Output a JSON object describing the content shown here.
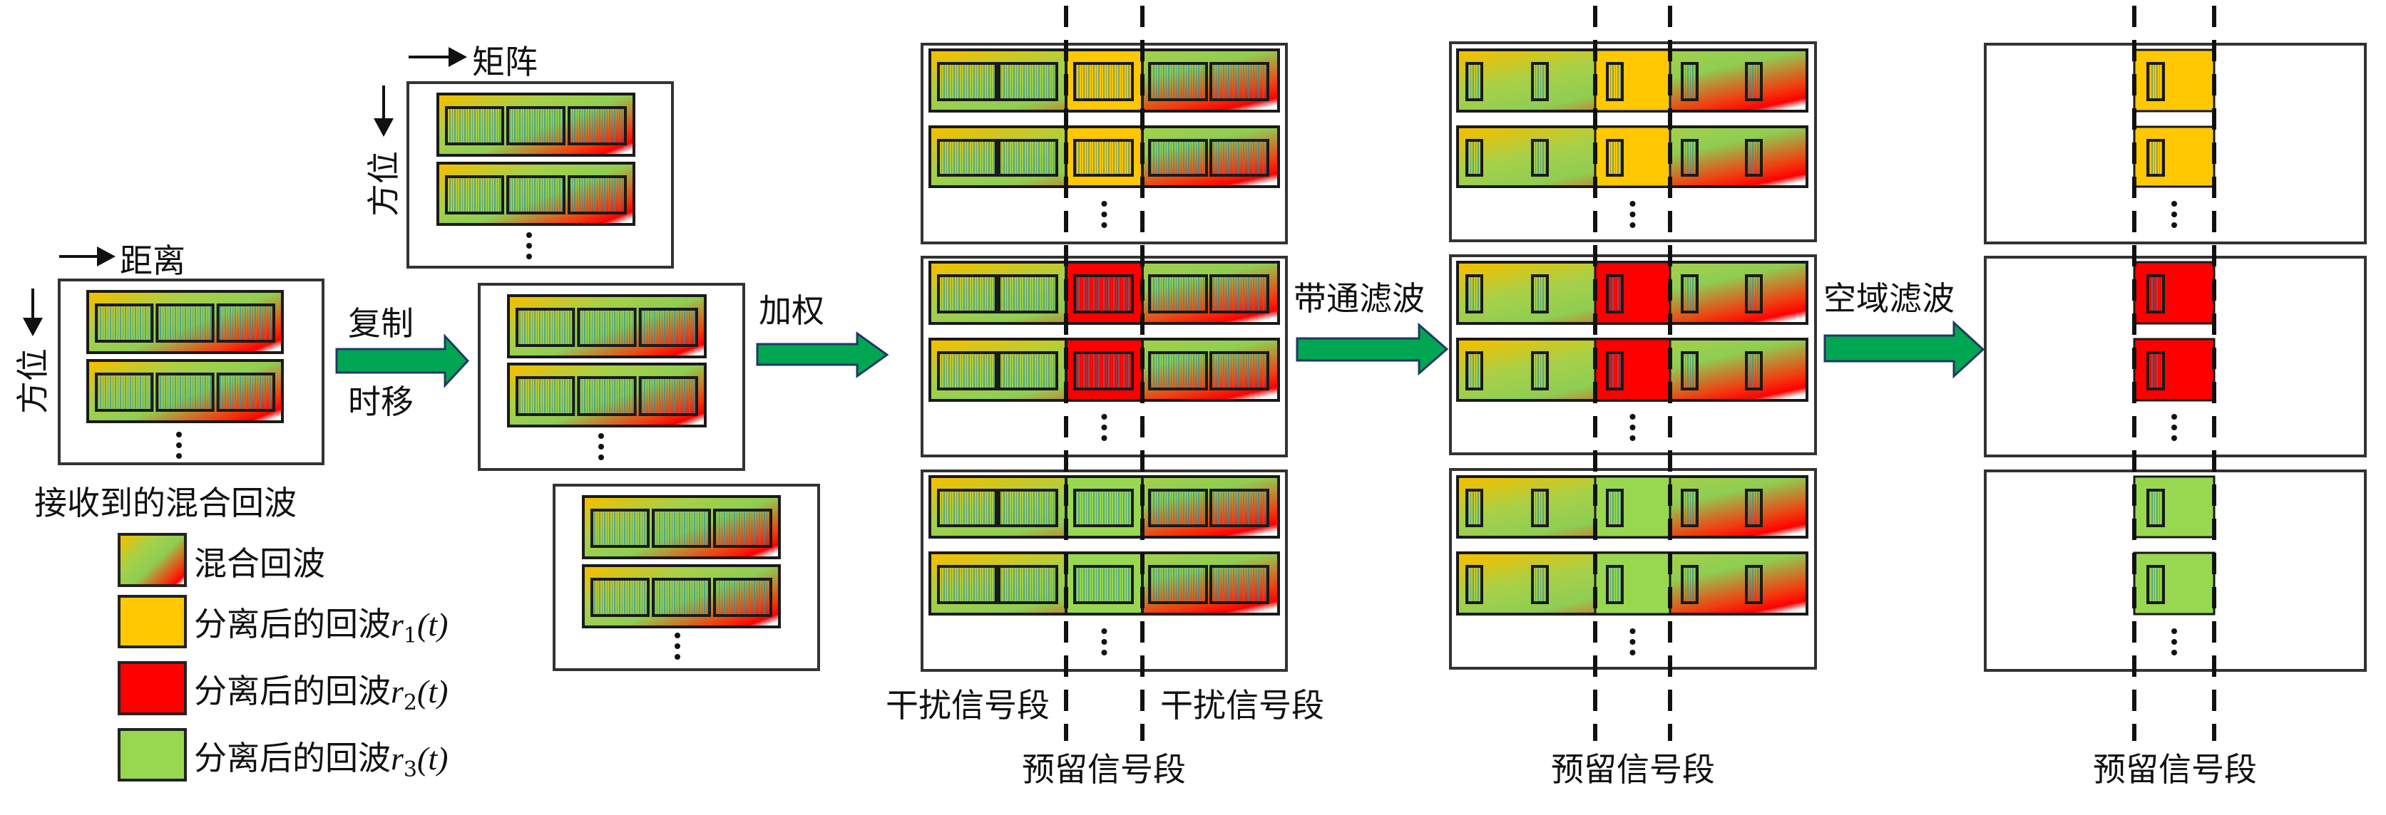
{
  "labels": {
    "range_axis": "距离",
    "azimuth_axis_1": "方位",
    "matrix_axis": "矩阵",
    "azimuth_axis_2": "方位",
    "received_caption": "接收到的混合回波",
    "copy": "复制",
    "time_shift": "时移",
    "weighting": "加权",
    "bandpass": "带通滤波",
    "spatial": "空域滤波",
    "interference_left": "干扰信号段",
    "interference_right": "干扰信号段",
    "reserved_1": "预留信号段",
    "reserved_2": "预留信号段",
    "reserved_3": "预留信号段"
  },
  "legend": [
    {
      "label": "混合回波",
      "swatch": "gradient"
    },
    {
      "label": "分离后的回波",
      "symbol": "r",
      "sub": "1",
      "arg": "(t)",
      "color": "#ffc800"
    },
    {
      "label": "分离后的回波",
      "symbol": "r",
      "sub": "2",
      "arg": "(t)",
      "color": "#ff0000"
    },
    {
      "label": "分离后的回波",
      "symbol": "r",
      "sub": "3",
      "arg": "(t)",
      "color": "#98d850"
    }
  ],
  "colors": {
    "separated_1": "#ffc800",
    "separated_2": "#ff0000",
    "separated_3": "#98d850",
    "arrow_fill": "#00a651",
    "arrow_stroke": "#1f3864"
  }
}
